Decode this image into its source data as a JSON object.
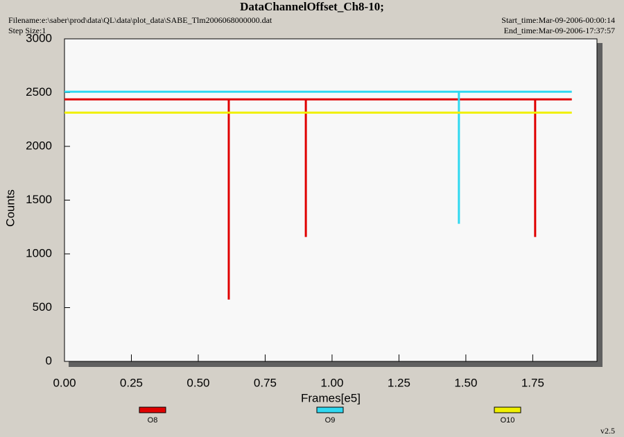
{
  "chart_data": {
    "type": "line",
    "title": "DataChannelOffset_Ch8-10;",
    "filename": "Filename:e:\\saber\\prod\\data\\QL\\data\\plot_data\\SABE_Tlm2006068000000.dat",
    "step_size": "Step Size:1",
    "start_time": "Start_time:Mar-09-2006-00:00:14",
    "end_time": "End_time:Mar-09-2006-17:37:57",
    "version": "v2.5",
    "xlabel": "Frames[e5]",
    "ylabel": "Counts",
    "xlim": [
      0,
      1.99
    ],
    "ylim": [
      0,
      3000
    ],
    "xticks": [
      {
        "value": 0,
        "label": "0.00"
      },
      {
        "value": 0.25,
        "label": "0.25"
      },
      {
        "value": 0.5,
        "label": "0.50"
      },
      {
        "value": 0.75,
        "label": "0.75"
      },
      {
        "value": 1,
        "label": "1.00"
      },
      {
        "value": 1.25,
        "label": "1.25"
      },
      {
        "value": 1.5,
        "label": "1.50"
      },
      {
        "value": 1.75,
        "label": "1.75"
      }
    ],
    "yticks": [
      0,
      500,
      1000,
      1500,
      2000,
      2500,
      3000
    ],
    "series": [
      {
        "name": "O8",
        "color": "#e00000",
        "x": [
          0,
          0.614,
          0.614,
          0.614,
          0.902,
          0.902,
          0.902,
          1.759,
          1.759,
          1.759,
          1.896
        ],
        "values": [
          2437,
          2437,
          575,
          2437,
          2437,
          1157,
          2437,
          2437,
          1157,
          2437,
          2437
        ]
      },
      {
        "name": "O9",
        "color": "#30d8f0",
        "x": [
          0,
          1.474,
          1.474,
          1.474,
          1.896
        ],
        "values": [
          2508,
          2508,
          1280,
          2508,
          2508
        ]
      },
      {
        "name": "O10",
        "color": "#f0f000",
        "x": [
          0,
          1.896
        ],
        "values": [
          2314,
          2314
        ]
      }
    ]
  }
}
